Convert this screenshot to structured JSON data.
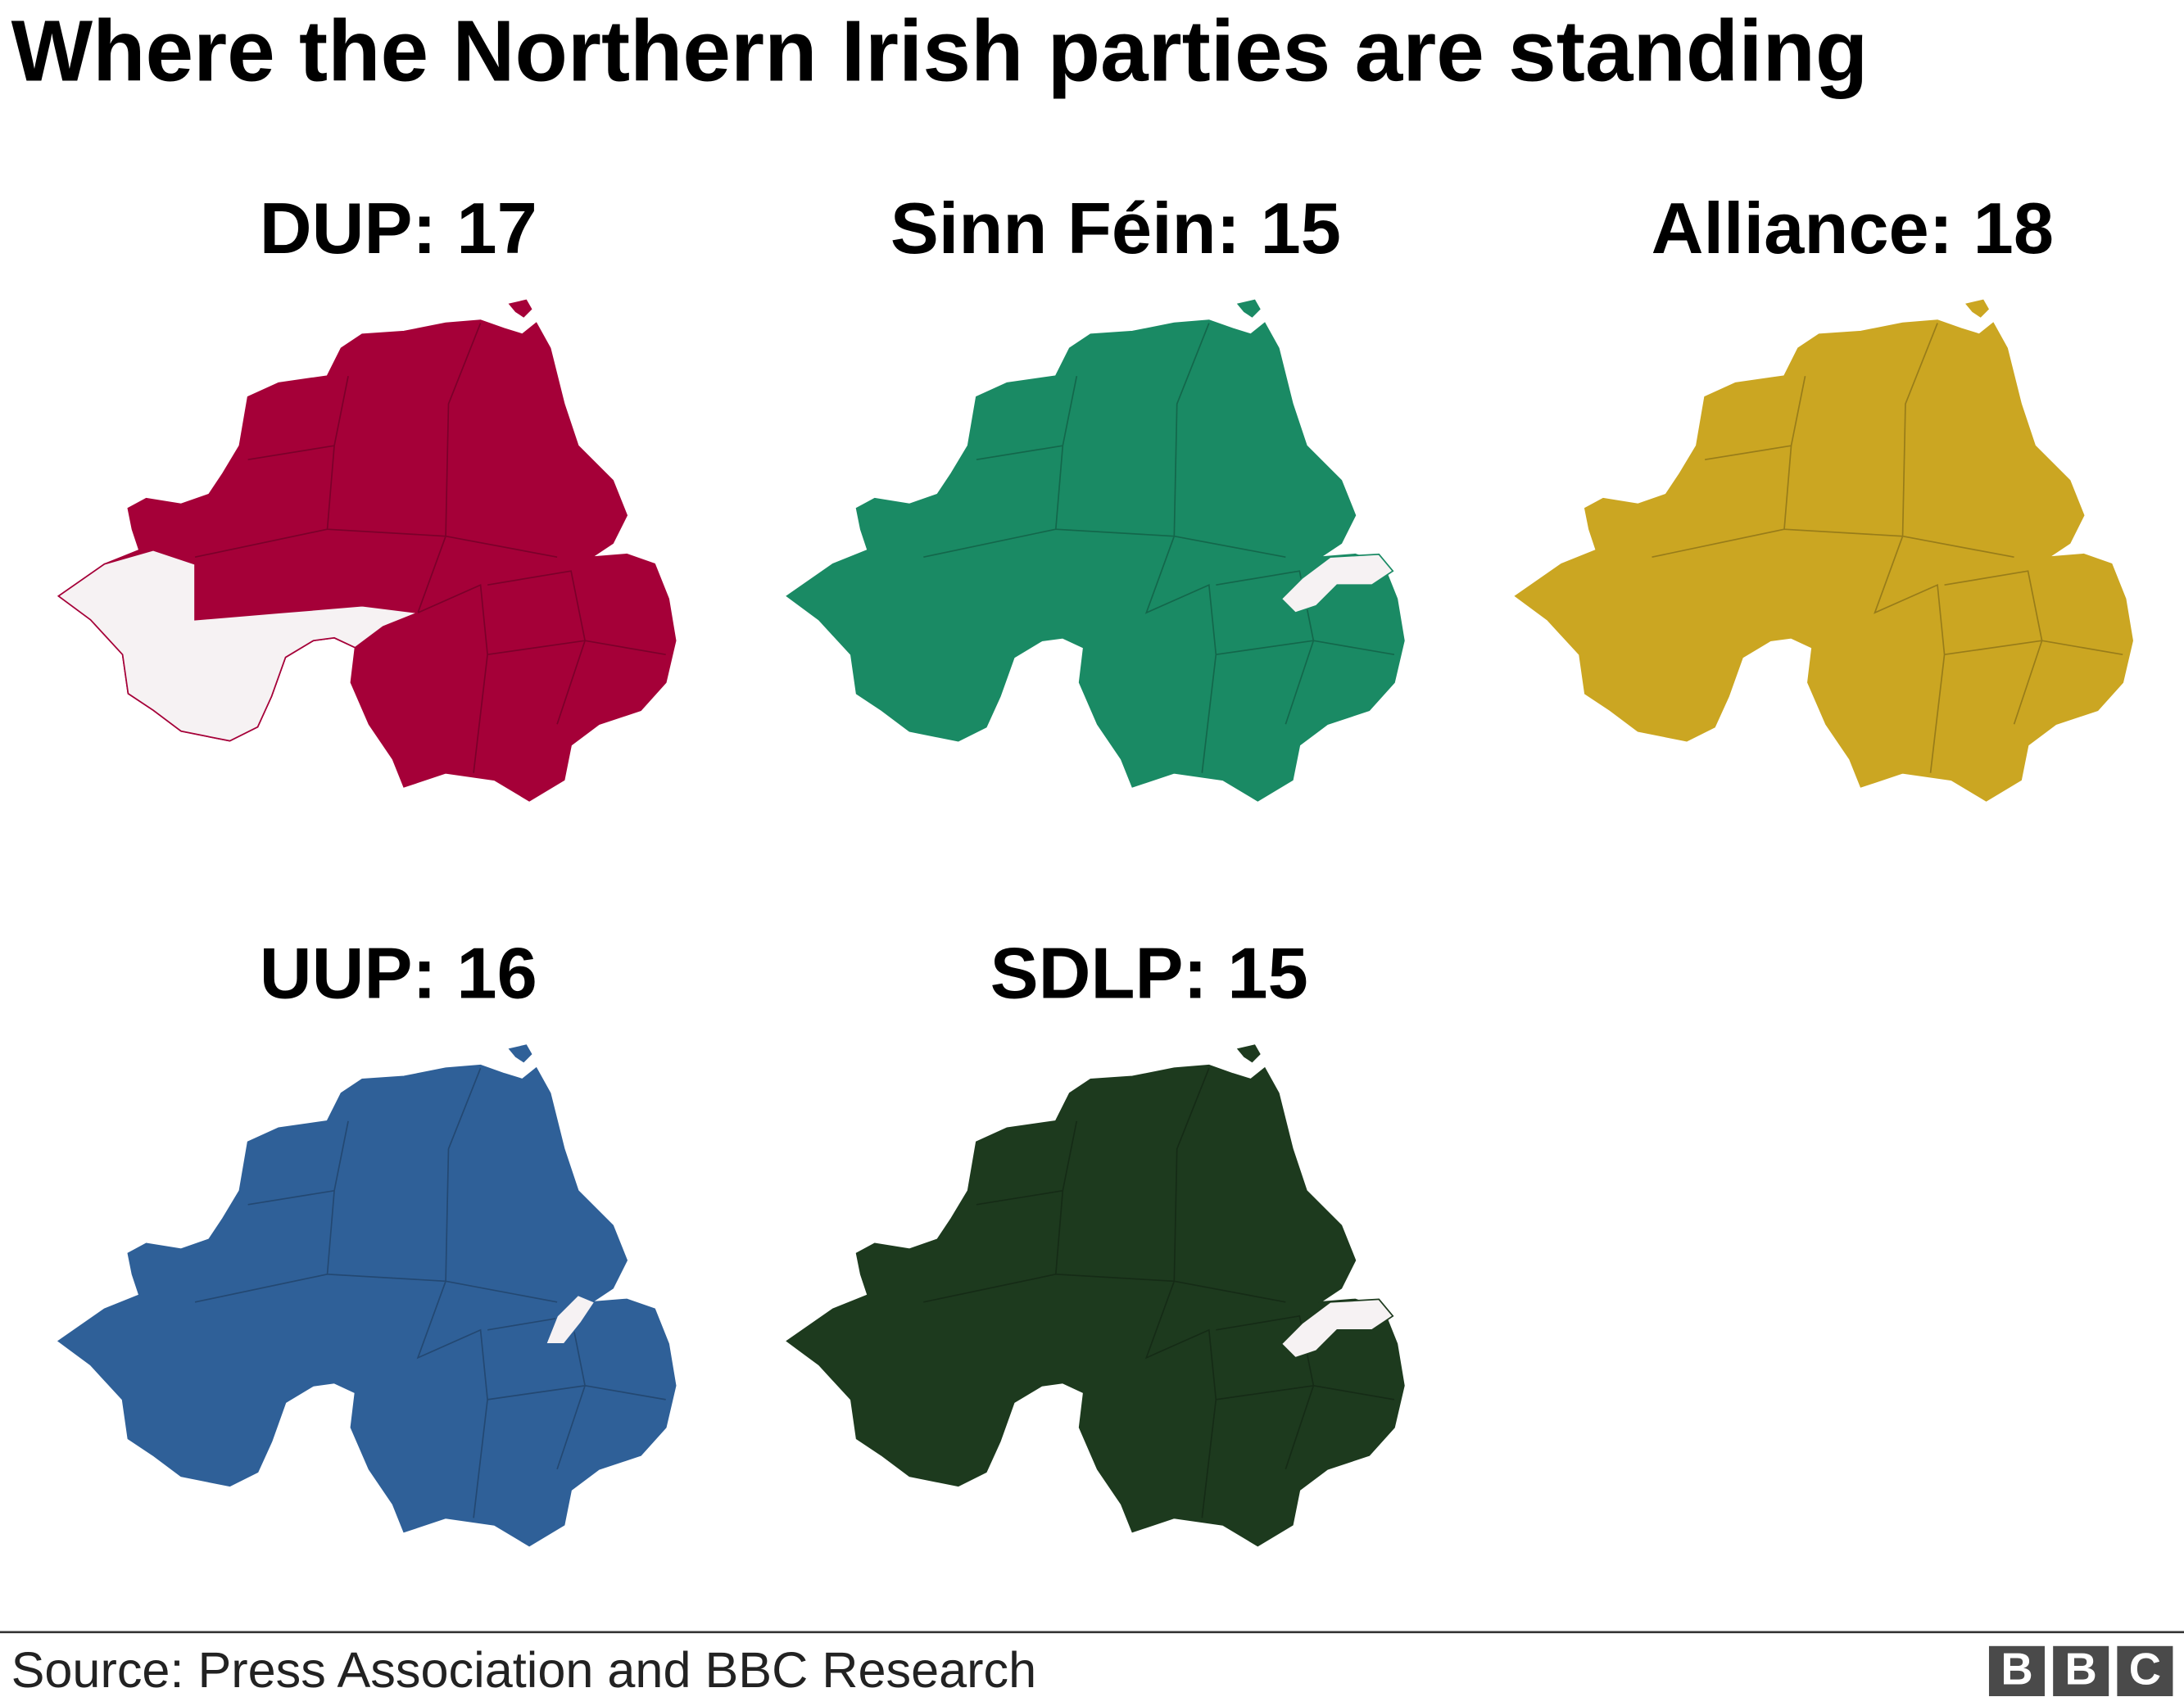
{
  "title": "Where the Northern Irish parties are standing",
  "maps": [
    {
      "label": "DUP: 17",
      "color": "#a50038"
    },
    {
      "label": "Sinn Féin: 15",
      "color": "#1a8a64"
    },
    {
      "label": "Alliance: 18",
      "color": "#cba622"
    },
    {
      "label": "UUP: 16",
      "color": "#2f6098"
    },
    {
      "label": "SDLP: 15",
      "color": "#1d3a1e"
    }
  ],
  "source": "Source: Press Association and BBC Research",
  "logo": [
    "B",
    "B",
    "C"
  ]
}
